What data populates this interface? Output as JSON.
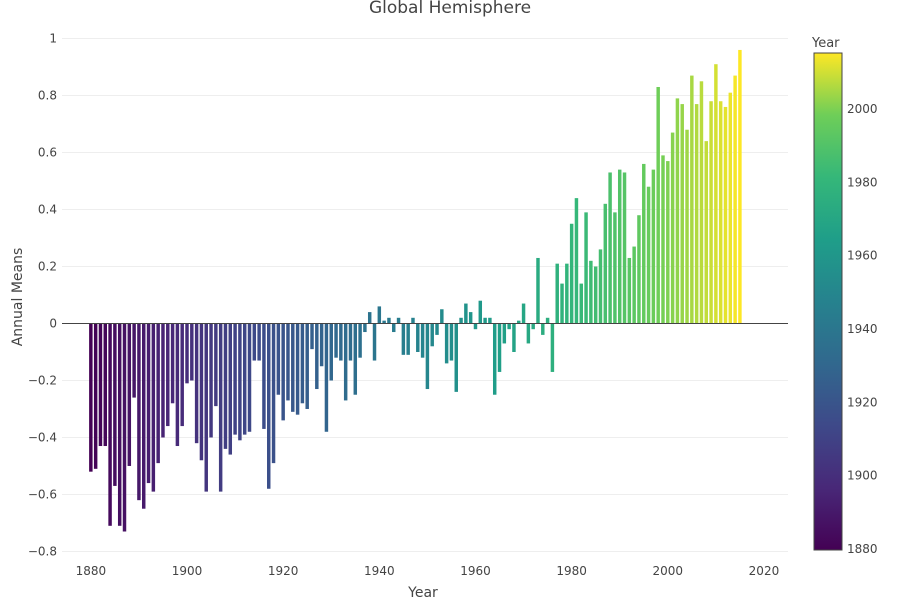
{
  "chart_data": {
    "type": "bar",
    "title": "Global Hemisphere",
    "xlabel": "Year",
    "ylabel": "Annual Means",
    "xlim": [
      1874,
      2025
    ],
    "ylim": [
      -0.83,
      1.03
    ],
    "x_ticks": [
      1880,
      1900,
      1920,
      1940,
      1960,
      1980,
      2000,
      2020
    ],
    "y_ticks": [
      -0.8,
      -0.6,
      -0.4,
      -0.2,
      0,
      0.2,
      0.4,
      0.6,
      0.8,
      1
    ],
    "y_tick_labels": [
      "−0.8",
      "−0.6",
      "−0.4",
      "−0.2",
      "0",
      "0.2",
      "0.4",
      "0.6",
      "0.8",
      "1"
    ],
    "grid": true,
    "colorbar": {
      "title": "Year",
      "range": [
        1880,
        2015
      ],
      "ticks": [
        1880,
        1900,
        1920,
        1940,
        1960,
        1980,
        2000
      ],
      "colorscale": "viridis"
    },
    "x": [
      1880,
      1881,
      1882,
      1883,
      1884,
      1885,
      1886,
      1887,
      1888,
      1889,
      1890,
      1891,
      1892,
      1893,
      1894,
      1895,
      1896,
      1897,
      1898,
      1899,
      1900,
      1901,
      1902,
      1903,
      1904,
      1905,
      1906,
      1907,
      1908,
      1909,
      1910,
      1911,
      1912,
      1913,
      1914,
      1915,
      1916,
      1917,
      1918,
      1919,
      1920,
      1921,
      1922,
      1923,
      1924,
      1925,
      1926,
      1927,
      1928,
      1929,
      1930,
      1931,
      1932,
      1933,
      1934,
      1935,
      1936,
      1937,
      1938,
      1939,
      1940,
      1941,
      1942,
      1943,
      1944,
      1945,
      1946,
      1947,
      1948,
      1949,
      1950,
      1951,
      1952,
      1953,
      1954,
      1955,
      1956,
      1957,
      1958,
      1959,
      1960,
      1961,
      1962,
      1963,
      1964,
      1965,
      1966,
      1967,
      1968,
      1969,
      1970,
      1971,
      1972,
      1973,
      1974,
      1975,
      1976,
      1977,
      1978,
      1979,
      1980,
      1981,
      1982,
      1983,
      1984,
      1985,
      1986,
      1987,
      1988,
      1989,
      1990,
      1991,
      1992,
      1993,
      1994,
      1995,
      1996,
      1997,
      1998,
      1999,
      2000,
      2001,
      2002,
      2003,
      2004,
      2005,
      2006,
      2007,
      2008,
      2009,
      2010,
      2011,
      2012,
      2013,
      2014,
      2015
    ],
    "values": [
      -0.52,
      -0.51,
      -0.43,
      -0.43,
      -0.71,
      -0.57,
      -0.71,
      -0.73,
      -0.5,
      -0.26,
      -0.62,
      -0.65,
      -0.56,
      -0.59,
      -0.49,
      -0.4,
      -0.36,
      -0.28,
      -0.43,
      -0.36,
      -0.21,
      -0.2,
      -0.42,
      -0.48,
      -0.59,
      -0.4,
      -0.29,
      -0.59,
      -0.44,
      -0.46,
      -0.39,
      -0.41,
      -0.39,
      -0.38,
      -0.13,
      -0.13,
      -0.37,
      -0.58,
      -0.49,
      -0.25,
      -0.34,
      -0.27,
      -0.31,
      -0.32,
      -0.28,
      -0.3,
      -0.09,
      -0.23,
      -0.15,
      -0.38,
      -0.2,
      -0.12,
      -0.13,
      -0.27,
      -0.13,
      -0.25,
      -0.12,
      -0.03,
      0.04,
      -0.13,
      0.06,
      0.01,
      0.02,
      -0.03,
      0.02,
      -0.11,
      -0.11,
      0.02,
      -0.1,
      -0.12,
      -0.23,
      -0.08,
      -0.04,
      0.05,
      -0.14,
      -0.13,
      -0.24,
      0.02,
      0.07,
      0.04,
      -0.02,
      0.08,
      0.02,
      0.02,
      -0.25,
      -0.17,
      -0.07,
      -0.02,
      -0.1,
      0.01,
      0.07,
      -0.07,
      -0.02,
      0.23,
      -0.04,
      0.02,
      -0.17,
      0.21,
      0.14,
      0.21,
      0.35,
      0.44,
      0.14,
      0.39,
      0.22,
      0.2,
      0.26,
      0.42,
      0.53,
      0.39,
      0.54,
      0.53,
      0.23,
      0.27,
      0.38,
      0.56,
      0.48,
      0.54,
      0.83,
      0.59,
      0.57,
      0.67,
      0.79,
      0.77,
      0.68,
      0.87,
      0.77,
      0.85,
      0.64,
      0.78,
      0.91,
      0.78,
      0.76,
      0.81,
      0.87,
      0.96
    ]
  }
}
